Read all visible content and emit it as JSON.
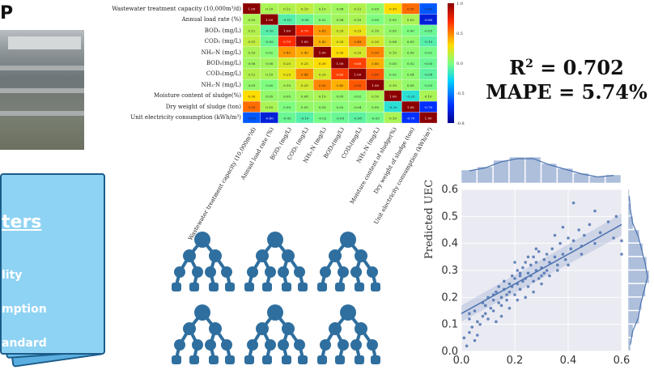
{
  "wwtp": {
    "title": "P"
  },
  "params_card": {
    "heading": "ters",
    "items": [
      "lity",
      "mption",
      "andard"
    ]
  },
  "metrics": {
    "r2_label": "R",
    "r2_sup": "2",
    "r2_value": " = 0.702",
    "mape": "MAPE = 5.74%"
  },
  "heatmap": {
    "variables": [
      "Wastewater treatment capacity (10,000m³/d)",
      "Annual load rate (%)",
      "BOD₅ (mg/L)",
      "COD₅ (mg/L)",
      "NH₃-N (mg/L)",
      "BOD₅(mg/L)",
      "COD₅(mg/L)",
      "NH₃-N (mg/L)",
      "Moisture content of sludge(%)",
      "Dry weight of sludge (ton)",
      "Unit electricity consumption (kWh/m³)"
    ],
    "colorbar_ticks": [
      "1.0",
      "0.5",
      "0.0",
      "-0.5",
      "-0.8"
    ],
    "matrix": [
      [
        1.0,
        0.1,
        0.12,
        0.15,
        0.1,
        0.08,
        0.12,
        0.05,
        0.3,
        0.55,
        -0.6
      ],
      [
        0.1,
        1.0,
        -0.1,
        -0.05,
        0.02,
        0.08,
        0.1,
        0.0,
        0.05,
        0.1,
        -0.8
      ],
      [
        0.12,
        -0.1,
        1.0,
        0.7,
        0.45,
        0.2,
        0.25,
        0.1,
        0.05,
        0.0,
        -0.05
      ],
      [
        0.15,
        -0.05,
        0.7,
        1.0,
        0.4,
        0.25,
        0.48,
        0.2,
        0.08,
        0.05,
        -0.1
      ],
      [
        0.1,
        0.02,
        0.45,
        0.4,
        1.0,
        0.3,
        0.2,
        0.5,
        0.1,
        0.05,
        -0.02
      ],
      [
        0.08,
        0.08,
        0.2,
        0.25,
        0.3,
        1.0,
        0.65,
        0.4,
        0.05,
        0.02,
        -0.05
      ],
      [
        0.12,
        0.1,
        0.25,
        0.48,
        0.2,
        0.65,
        1.0,
        0.6,
        0.02,
        0.04,
        -0.08
      ],
      [
        0.05,
        0.0,
        0.1,
        0.2,
        0.5,
        0.4,
        0.6,
        1.0,
        0.1,
        0.05,
        -0.03
      ],
      [
        0.3,
        0.05,
        0.05,
        0.08,
        0.1,
        0.05,
        0.02,
        0.1,
        1.0,
        -0.2,
        0.1
      ],
      [
        0.55,
        0.1,
        0.0,
        0.05,
        0.05,
        0.02,
        0.04,
        0.05,
        -0.2,
        1.0,
        -0.7
      ],
      [
        -0.6,
        -0.8,
        -0.05,
        -0.1,
        -0.02,
        -0.05,
        -0.08,
        -0.03,
        0.1,
        -0.7,
        1.0
      ]
    ]
  },
  "chart_data": {
    "type": "scatter",
    "xlabel": "",
    "ylabel": "Predicted UEC",
    "xlim": [
      0.0,
      0.6
    ],
    "ylim": [
      0.0,
      0.6
    ],
    "x_ticks": [
      "0.0",
      "0.2",
      "0.4",
      "0.6"
    ],
    "y_ticks": [
      "0.0",
      "0.1",
      "0.2",
      "0.3",
      "0.4",
      "0.5",
      "0.6"
    ],
    "regression_line": {
      "x": [
        0.0,
        0.6
      ],
      "y": [
        0.14,
        0.47
      ]
    },
    "points_x": [
      0.01,
      0.02,
      0.03,
      0.03,
      0.04,
      0.05,
      0.05,
      0.06,
      0.07,
      0.08,
      0.08,
      0.09,
      0.1,
      0.1,
      0.11,
      0.12,
      0.12,
      0.13,
      0.14,
      0.14,
      0.15,
      0.15,
      0.16,
      0.16,
      0.17,
      0.17,
      0.18,
      0.18,
      0.19,
      0.19,
      0.2,
      0.2,
      0.21,
      0.21,
      0.22,
      0.22,
      0.23,
      0.23,
      0.24,
      0.24,
      0.25,
      0.25,
      0.26,
      0.26,
      0.27,
      0.27,
      0.28,
      0.28,
      0.29,
      0.29,
      0.3,
      0.3,
      0.31,
      0.31,
      0.32,
      0.32,
      0.33,
      0.34,
      0.35,
      0.36,
      0.37,
      0.38,
      0.39,
      0.4,
      0.41,
      0.42,
      0.44,
      0.45,
      0.46,
      0.48,
      0.5,
      0.52,
      0.55,
      0.57,
      0.58,
      0.6,
      0.03,
      0.06,
      0.09,
      0.12,
      0.15,
      0.18,
      0.21,
      0.24,
      0.27,
      0.3,
      0.33,
      0.36,
      0.4,
      0.45,
      0.2,
      0.25,
      0.28,
      0.22,
      0.35,
      0.38,
      0.5,
      0.42,
      0.6,
      0.13
    ],
    "points_y": [
      0.05,
      0.02,
      0.07,
      0.12,
      0.09,
      0.04,
      0.15,
      0.06,
      0.1,
      0.13,
      0.18,
      0.14,
      0.12,
      0.2,
      0.16,
      0.19,
      0.15,
      0.22,
      0.18,
      0.24,
      0.2,
      0.17,
      0.23,
      0.26,
      0.21,
      0.19,
      0.25,
      0.22,
      0.28,
      0.24,
      0.27,
      0.21,
      0.3,
      0.25,
      0.28,
      0.23,
      0.31,
      0.26,
      0.33,
      0.27,
      0.29,
      0.24,
      0.32,
      0.28,
      0.35,
      0.26,
      0.3,
      0.33,
      0.27,
      0.37,
      0.31,
      0.28,
      0.34,
      0.29,
      0.36,
      0.3,
      0.33,
      0.38,
      0.35,
      0.32,
      0.4,
      0.36,
      0.34,
      0.42,
      0.38,
      0.41,
      0.45,
      0.39,
      0.43,
      0.47,
      0.4,
      0.44,
      0.48,
      0.42,
      0.5,
      0.41,
      0.14,
      0.11,
      0.17,
      0.21,
      0.13,
      0.16,
      0.19,
      0.2,
      0.22,
      0.25,
      0.28,
      0.3,
      0.32,
      0.36,
      0.33,
      0.35,
      0.38,
      0.29,
      0.43,
      0.46,
      0.52,
      0.55,
      0.36,
      0.11
    ]
  }
}
